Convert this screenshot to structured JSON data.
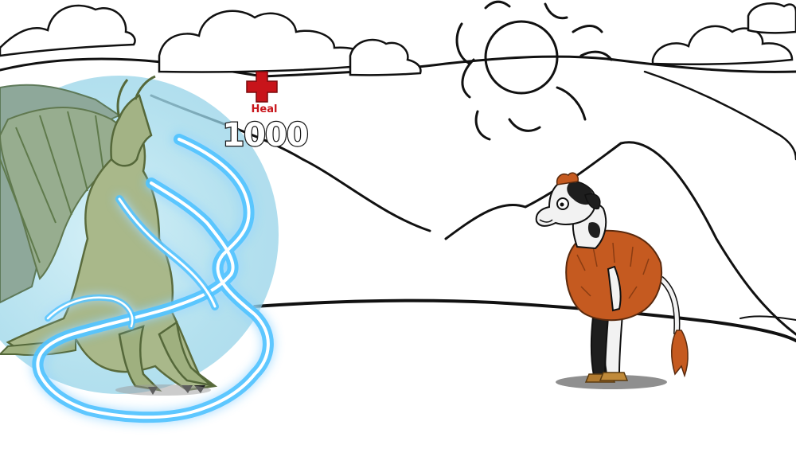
{
  "battle": {
    "effect": {
      "label": "Heal",
      "amount": "1000",
      "icon": "red-cross-icon",
      "color": "#c8141a"
    },
    "player": {
      "name": "dragon",
      "shield_color": "#a8dcec",
      "lightning_color": "#36b8ff"
    },
    "enemy": {
      "name": "cow"
    }
  }
}
